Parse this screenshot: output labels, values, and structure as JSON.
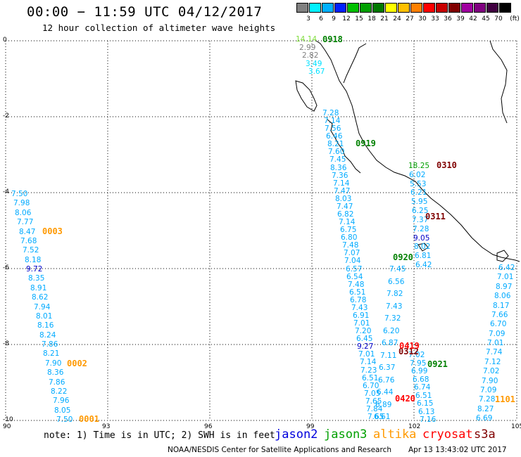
{
  "header": {
    "title": "00:00 − 11:59 UTC 04/12/2017",
    "subtitle": "12 hour collection of altimeter wave heights"
  },
  "scale": {
    "unit": "(ft)",
    "bins": [
      {
        "label": "3",
        "color": "#808080"
      },
      {
        "label": "6",
        "color": "#00f0ff"
      },
      {
        "label": "9",
        "color": "#00b0ff"
      },
      {
        "label": "12",
        "color": "#0020ff"
      },
      {
        "label": "15",
        "color": "#00c000"
      },
      {
        "label": "18",
        "color": "#00a000"
      },
      {
        "label": "21",
        "color": "#007800"
      },
      {
        "label": "24",
        "color": "#ffff00"
      },
      {
        "label": "27",
        "color": "#ffc000"
      },
      {
        "label": "30",
        "color": "#ff8000"
      },
      {
        "label": "33",
        "color": "#ff0000"
      },
      {
        "label": "36",
        "color": "#c80000"
      },
      {
        "label": "39",
        "color": "#800000"
      },
      {
        "label": "42",
        "color": "#a000a0"
      },
      {
        "label": "45",
        "color": "#800080"
      },
      {
        "label": "70",
        "color": "#400040"
      },
      {
        "label": "",
        "color": "#000000"
      }
    ]
  },
  "axes": {
    "x_ticks": [
      "90",
      "93",
      "96",
      "99",
      "102",
      "105"
    ],
    "y_ticks": [
      "0",
      "-2",
      "-4",
      "-6",
      "-8",
      "-10"
    ]
  },
  "passes": [
    {
      "id": "0918",
      "color": "#008000"
    },
    {
      "id": "0919",
      "color": "#008000"
    },
    {
      "id": "0920",
      "color": "#008000"
    },
    {
      "id": "0921",
      "color": "#008000"
    },
    {
      "id": "0310",
      "color": "#800000"
    },
    {
      "id": "0311",
      "color": "#800000"
    },
    {
      "id": "0312",
      "color": "#800000"
    },
    {
      "id": "0419",
      "color": "#ff0000"
    },
    {
      "id": "0420",
      "color": "#ff0000"
    },
    {
      "id": "0003",
      "color": "#ff9900"
    },
    {
      "id": "0002",
      "color": "#ff9900"
    },
    {
      "id": "0001",
      "color": "#ff9900"
    },
    {
      "id": "1101",
      "color": "#ff9900"
    }
  ],
  "tracks": {
    "west": [
      {
        "v": "7.50",
        "c": "#00aaff"
      },
      {
        "v": "7.98",
        "c": "#00aaff"
      },
      {
        "v": "8.06",
        "c": "#00aaff"
      },
      {
        "v": "7.77",
        "c": "#00aaff"
      },
      {
        "v": "8.47",
        "c": "#00aaff"
      },
      {
        "v": "7.68",
        "c": "#00aaff"
      },
      {
        "v": "7.52",
        "c": "#00aaff"
      },
      {
        "v": "8.18",
        "c": "#00aaff"
      },
      {
        "v": "9.72",
        "c": "#0000c8"
      },
      {
        "v": "8.35",
        "c": "#00aaff"
      },
      {
        "v": "8.91",
        "c": "#00aaff"
      },
      {
        "v": "8.62",
        "c": "#00aaff"
      },
      {
        "v": "7.94",
        "c": "#00aaff"
      },
      {
        "v": "8.01",
        "c": "#00aaff"
      },
      {
        "v": "8.16",
        "c": "#00aaff"
      },
      {
        "v": "8.24",
        "c": "#00aaff"
      },
      {
        "v": "7.86",
        "c": "#00aaff"
      },
      {
        "v": "8.21",
        "c": "#00aaff"
      },
      {
        "v": "7.90",
        "c": "#00aaff"
      },
      {
        "v": "8.36",
        "c": "#00aaff"
      },
      {
        "v": "7.86",
        "c": "#00aaff"
      },
      {
        "v": "8.22",
        "c": "#00aaff"
      },
      {
        "v": "7.96",
        "c": "#00aaff"
      },
      {
        "v": "8.05",
        "c": "#00aaff"
      },
      {
        "v": "7.50",
        "c": "#00aaff"
      }
    ],
    "mid": [
      {
        "v": "7.28",
        "c": "#00aaff"
      },
      {
        "v": "7.14",
        "c": "#00aaff"
      },
      {
        "v": "7.56",
        "c": "#00aaff"
      },
      {
        "v": "6.46",
        "c": "#00aaff"
      },
      {
        "v": "8.21",
        "c": "#00aaff"
      },
      {
        "v": "7.60",
        "c": "#00aaff"
      },
      {
        "v": "7.45",
        "c": "#00aaff"
      },
      {
        "v": "8.36",
        "c": "#00aaff"
      },
      {
        "v": "7.36",
        "c": "#00aaff"
      },
      {
        "v": "7.14",
        "c": "#00aaff"
      },
      {
        "v": "7.47",
        "c": "#00aaff"
      },
      {
        "v": "8.03",
        "c": "#00aaff"
      },
      {
        "v": "7.47",
        "c": "#00aaff"
      },
      {
        "v": "6.82",
        "c": "#00aaff"
      },
      {
        "v": "7.14",
        "c": "#00aaff"
      },
      {
        "v": "6.75",
        "c": "#00aaff"
      },
      {
        "v": "6.80",
        "c": "#00aaff"
      },
      {
        "v": "7.48",
        "c": "#00aaff"
      },
      {
        "v": "7.07",
        "c": "#00aaff"
      },
      {
        "v": "7.04",
        "c": "#00aaff"
      },
      {
        "v": "6.57",
        "c": "#00aaff"
      },
      {
        "v": "6.54",
        "c": "#00aaff"
      },
      {
        "v": "7.48",
        "c": "#00aaff"
      },
      {
        "v": "6.51",
        "c": "#00aaff"
      },
      {
        "v": "6.78",
        "c": "#00aaff"
      },
      {
        "v": "7.43",
        "c": "#00aaff"
      },
      {
        "v": "6.91",
        "c": "#00aaff"
      },
      {
        "v": "7.01",
        "c": "#00aaff"
      },
      {
        "v": "7.20",
        "c": "#00aaff"
      },
      {
        "v": "6.45",
        "c": "#00aaff"
      },
      {
        "v": "9.27",
        "c": "#0000c8"
      },
      {
        "v": "7.01",
        "c": "#00aaff"
      },
      {
        "v": "7.14",
        "c": "#00aaff"
      },
      {
        "v": "7.23",
        "c": "#00aaff"
      },
      {
        "v": "6.51",
        "c": "#00aaff"
      },
      {
        "v": "6.70",
        "c": "#00aaff"
      },
      {
        "v": "7.05",
        "c": "#00aaff"
      },
      {
        "v": "7.65",
        "c": "#00aaff"
      },
      {
        "v": "7.84",
        "c": "#00aaff"
      },
      {
        "v": "7.65",
        "c": "#00aaff"
      }
    ],
    "mid2": [
      {
        "v": "7.45",
        "c": "#00aaff"
      },
      {
        "v": "6.56",
        "c": "#00aaff"
      },
      {
        "v": "7.82",
        "c": "#00aaff"
      },
      {
        "v": "7.43",
        "c": "#00aaff"
      },
      {
        "v": "7.32",
        "c": "#00aaff"
      },
      {
        "v": "6.20",
        "c": "#00aaff"
      },
      {
        "v": "6.87",
        "c": "#00aaff"
      },
      {
        "v": "7.11",
        "c": "#00aaff"
      },
      {
        "v": "6.37",
        "c": "#00aaff"
      },
      {
        "v": "6.76",
        "c": "#00aaff"
      },
      {
        "v": "6.44",
        "c": "#00aaff"
      },
      {
        "v": "6.89",
        "c": "#00aaff"
      },
      {
        "v": "6.61",
        "c": "#00aaff"
      }
    ],
    "east1": [
      {
        "v": "18.25",
        "c": "#00a000"
      },
      {
        "v": "6.02",
        "c": "#00aaff"
      },
      {
        "v": "5.53",
        "c": "#00aaff"
      },
      {
        "v": "6.21",
        "c": "#00aaff"
      },
      {
        "v": "5.95",
        "c": "#00aaff"
      },
      {
        "v": "6.25",
        "c": "#00aaff"
      },
      {
        "v": "7.37",
        "c": "#00aaff"
      },
      {
        "v": "7.28",
        "c": "#00aaff"
      },
      {
        "v": "9.05",
        "c": "#0000c8"
      },
      {
        "v": "8.02",
        "c": "#00aaff"
      },
      {
        "v": "6.81",
        "c": "#00aaff"
      },
      {
        "v": "6.42",
        "c": "#00aaff"
      }
    ],
    "east2": [
      {
        "v": "7.02",
        "c": "#00aaff"
      },
      {
        "v": "7.95",
        "c": "#00aaff"
      },
      {
        "v": "6.99",
        "c": "#00aaff"
      },
      {
        "v": "6.68",
        "c": "#00aaff"
      },
      {
        "v": "6.74",
        "c": "#00aaff"
      },
      {
        "v": "6.51",
        "c": "#00aaff"
      },
      {
        "v": "6.15",
        "c": "#00aaff"
      },
      {
        "v": "6.13",
        "c": "#00aaff"
      },
      {
        "v": "7.16",
        "c": "#00aaff"
      }
    ],
    "far": [
      {
        "v": "6.42",
        "c": "#00aaff"
      },
      {
        "v": "7.01",
        "c": "#00aaff"
      },
      {
        "v": "8.97",
        "c": "#00aaff"
      },
      {
        "v": "8.06",
        "c": "#00aaff"
      },
      {
        "v": "8.17",
        "c": "#00aaff"
      },
      {
        "v": "7.66",
        "c": "#00aaff"
      },
      {
        "v": "6.70",
        "c": "#00aaff"
      },
      {
        "v": "7.09",
        "c": "#00aaff"
      },
      {
        "v": "7.01",
        "c": "#00aaff"
      },
      {
        "v": "7.74",
        "c": "#00aaff"
      },
      {
        "v": "7.12",
        "c": "#00aaff"
      },
      {
        "v": "7.02",
        "c": "#00aaff"
      },
      {
        "v": "7.90",
        "c": "#00aaff"
      },
      {
        "v": "7.09",
        "c": "#00aaff"
      },
      {
        "v": "7.28",
        "c": "#00aaff"
      },
      {
        "v": "8.27",
        "c": "#00aaff"
      },
      {
        "v": "6.69",
        "c": "#00aaff"
      }
    ],
    "north": [
      {
        "v": "14.14",
        "c": "#7fdc3c"
      },
      {
        "v": "2.99",
        "c": "#808080"
      },
      {
        "v": "2.82",
        "c": "#808080"
      },
      {
        "v": "3.49",
        "c": "#00e0ff"
      },
      {
        "v": "3.67",
        "c": "#00e0ff"
      }
    ]
  },
  "footer": {
    "note": "note: 1) Time is in UTC; 2) SWH is in feet",
    "satellites": [
      {
        "name": "jason2",
        "color": "#0000dd"
      },
      {
        "name": "jason3",
        "color": "#00a000"
      },
      {
        "name": "altika",
        "color": "#ff9900"
      },
      {
        "name": "cryosat",
        "color": "#ff0000"
      },
      {
        "name": "s3a",
        "color": "#800000"
      }
    ],
    "credit": "NOAA/NESDIS Center for Satellite Applications and Research",
    "stamp": "Apr 13 13:43:02 UTC 2017"
  }
}
